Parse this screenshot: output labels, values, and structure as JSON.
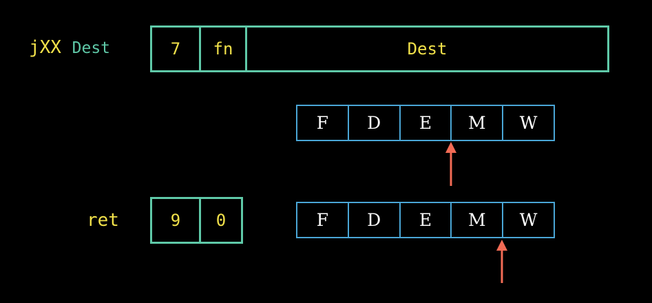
{
  "jxx": {
    "mnemonic": "jXX",
    "operand": "Dest",
    "fields": [
      "7",
      "fn",
      "Dest"
    ]
  },
  "ret": {
    "mnemonic": "ret",
    "fields": [
      "9",
      "0"
    ]
  },
  "pipeline": {
    "stages": [
      "F",
      "D",
      "E",
      "M",
      "W"
    ]
  },
  "colors": {
    "text": "#f1e14a",
    "operand": "#5fc9a8",
    "box_border": "#5fc9a8",
    "stage_border": "#4aa6d6",
    "arrow": "#f26b55"
  }
}
